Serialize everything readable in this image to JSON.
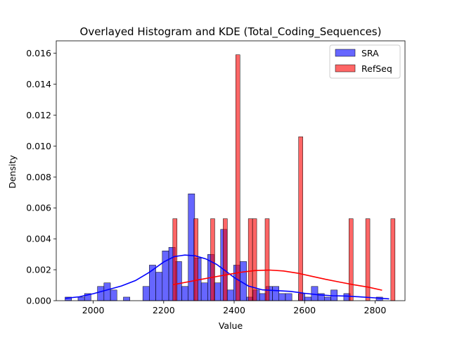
{
  "chart_data": {
    "type": "bar",
    "title": "Overlayed Histogram and KDE (Total_Coding_Sequences)",
    "xlabel": "Value",
    "ylabel": "Density",
    "xlim": [
      1895,
      2885
    ],
    "ylim": [
      0,
      0.0168
    ],
    "x_ticks": [
      2000,
      2200,
      2400,
      2600,
      2800
    ],
    "y_ticks": [
      0.0,
      0.002,
      0.004,
      0.006,
      0.008,
      0.01,
      0.012,
      0.014,
      0.016
    ],
    "y_tick_labels": [
      "0.000",
      "0.002",
      "0.004",
      "0.006",
      "0.008",
      "0.010",
      "0.012",
      "0.014",
      "0.016"
    ],
    "legend_position": "upper right",
    "series": [
      {
        "name": "SRA",
        "color": "#0000ff",
        "alpha": 0.6,
        "bin_start": 1920,
        "bin_width": 18.4,
        "heights": [
          0.00023,
          0,
          0.00023,
          0.00046,
          0,
          0.00092,
          0.00115,
          0.00069,
          0,
          0.00023,
          0,
          0,
          0.00092,
          0.0023,
          0.00184,
          0.00322,
          0.00345,
          0.00253,
          0.00092,
          0.00691,
          0.00276,
          0.00115,
          0.00299,
          0.00115,
          0.00461,
          0.00069,
          0.0023,
          0.00253,
          0.00023,
          0.00069,
          0.00046,
          0.00092,
          0.00092,
          0.00046,
          0.00046,
          0,
          0.00046,
          0.00023,
          0.00092,
          0.00046,
          0.00023,
          0.00069,
          0,
          0.00046,
          0,
          0,
          0,
          0,
          0.00023
        ],
        "kde": {
          "x": [
            1920,
            1960,
            2000,
            2040,
            2080,
            2120,
            2160,
            2200,
            2230,
            2260,
            2290,
            2320,
            2350,
            2380,
            2400,
            2440,
            2480,
            2520,
            2560,
            2600,
            2640,
            2680,
            2720,
            2760,
            2800,
            2840
          ],
          "y": [
            0.00015,
            0.00025,
            0.00045,
            0.0007,
            0.00095,
            0.0013,
            0.00185,
            0.0025,
            0.00285,
            0.00295,
            0.0029,
            0.0027,
            0.00235,
            0.00185,
            0.0015,
            0.00095,
            0.0007,
            0.00065,
            0.0006,
            0.00048,
            0.00038,
            0.00032,
            0.0003,
            0.00024,
            0.00018,
            0.00012
          ]
        }
      },
      {
        "name": "RefSeq",
        "color": "#ff0000",
        "alpha": 0.6,
        "bin_start": 2226,
        "bin_width": 11.9,
        "heights": [
          0.0053,
          0,
          0,
          0,
          0,
          0.0053,
          0,
          0,
          0,
          0.0053,
          0,
          0,
          0.0053,
          0,
          0,
          0.0159,
          0,
          0,
          0.0053,
          0.0053,
          0,
          0,
          0.0053,
          0,
          0,
          0,
          0,
          0,
          0,
          0,
          0.0106,
          0,
          0,
          0,
          0,
          0,
          0,
          0,
          0,
          0,
          0,
          0,
          0.0053,
          0,
          0,
          0,
          0.0053,
          0,
          0,
          0,
          0,
          0,
          0.0053
        ],
        "kde": {
          "x": [
            2226,
            2260,
            2300,
            2340,
            2380,
            2420,
            2460,
            2500,
            2540,
            2580,
            2620,
            2660,
            2700,
            2740,
            2780,
            2820
          ],
          "y": [
            0.00103,
            0.00118,
            0.00135,
            0.00152,
            0.00168,
            0.00184,
            0.00195,
            0.00198,
            0.00192,
            0.00178,
            0.00158,
            0.00138,
            0.0012,
            0.00103,
            0.00088,
            0.00068
          ]
        }
      }
    ]
  }
}
